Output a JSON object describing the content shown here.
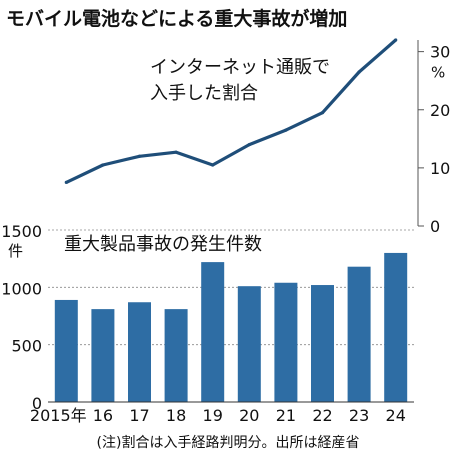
{
  "chart_data": [
    {
      "type": "line",
      "title": "モバイル電池などによる重大事故が増加",
      "annotation": "インターネット通販で\n入手した割合",
      "unit": "%",
      "x": [
        "2015年",
        "16",
        "17",
        "18",
        "19",
        "20",
        "21",
        "22",
        "23",
        "24"
      ],
      "values": [
        7.5,
        10.5,
        12,
        12.7,
        10.5,
        14,
        16.5,
        19.5,
        26.5,
        32
      ],
      "ylim": [
        0,
        32
      ],
      "yticks": [
        0,
        10,
        20,
        30
      ],
      "y_axis_side": "right",
      "color": "#1f4e79"
    },
    {
      "type": "bar",
      "annotation": "重大製品事故の発生件数",
      "unit": "件",
      "categories": [
        "2015年",
        "16",
        "17",
        "18",
        "19",
        "20",
        "21",
        "22",
        "23",
        "24"
      ],
      "values": [
        890,
        810,
        870,
        810,
        1220,
        1010,
        1040,
        1020,
        1180,
        1300
      ],
      "ylim": [
        0,
        1500
      ],
      "yticks": [
        0,
        500,
        1000,
        1500
      ],
      "y_axis_side": "left",
      "color": "#2e6da4"
    }
  ],
  "footnote": "(注)割合は入手経路判明分。出所は経産省"
}
